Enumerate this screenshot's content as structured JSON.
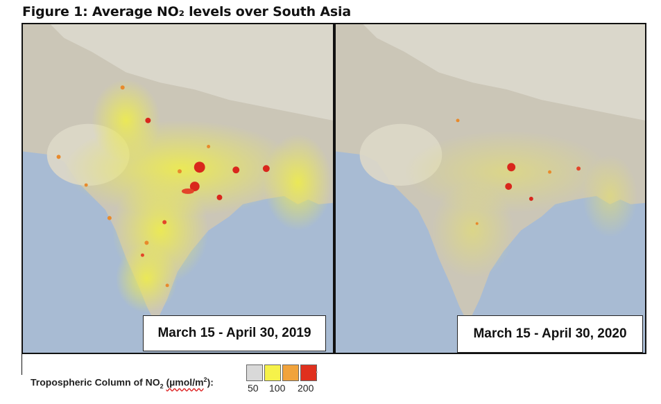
{
  "figure": {
    "title": "Figure 1: Average NO₂ levels over South Asia"
  },
  "panels": [
    {
      "date_label": "March 15 - April 30, 2019",
      "intensity": 1.0
    },
    {
      "date_label": "March 15 - April 30, 2020",
      "intensity": 0.45
    }
  ],
  "legend": {
    "label_prefix": "Tropospheric Column of NO",
    "label_sub": "2",
    "label_unit": "(µmol/m",
    "label_sup": "2",
    "label_suffix": "):",
    "swatch_colors": [
      "#d9d9d9",
      "#f6f24a",
      "#f1a33c",
      "#e0301e"
    ],
    "ticks": [
      "50",
      "100",
      "200"
    ]
  },
  "colors": {
    "ocean": "#a9bbd2",
    "land_north": "#c9c4b6",
    "plateau": "#d6d2c6",
    "no2_low": "#e9e45a",
    "no2_high": "#d9271c"
  }
}
